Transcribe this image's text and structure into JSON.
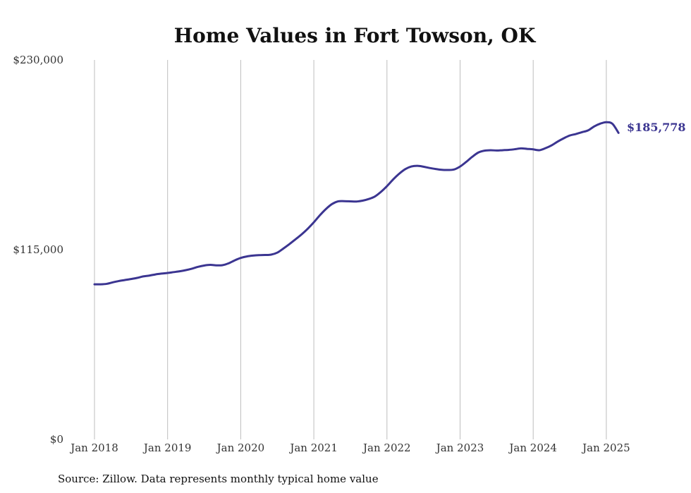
{
  "chart_data": {
    "type": "line",
    "title": "Home Values in Fort Towson, OK",
    "xlabel": "",
    "ylabel": "",
    "source": "Source: Zillow. Data represents monthly typical home value",
    "ylim": [
      0,
      230000
    ],
    "y_ticks": [
      {
        "value": 0,
        "label": "$0"
      },
      {
        "value": 115000,
        "label": "$115,000"
      },
      {
        "value": 230000,
        "label": "$230,000"
      }
    ],
    "x_ticks": [
      {
        "value": "2018-01",
        "label": "Jan 2018"
      },
      {
        "value": "2019-01",
        "label": "Jan 2019"
      },
      {
        "value": "2020-01",
        "label": "Jan 2020"
      },
      {
        "value": "2021-01",
        "label": "Jan 2021"
      },
      {
        "value": "2022-01",
        "label": "Jan 2022"
      },
      {
        "value": "2023-01",
        "label": "Jan 2023"
      },
      {
        "value": "2024-01",
        "label": "Jan 2024"
      },
      {
        "value": "2025-01",
        "label": "Jan 2025"
      }
    ],
    "grid": "vertical",
    "line_color": "#3b3591",
    "end_label": "$185,778",
    "series": [
      {
        "x": [
          "2018-01",
          "2018-02",
          "2018-03",
          "2018-04",
          "2018-05",
          "2018-06",
          "2018-07",
          "2018-08",
          "2018-09",
          "2018-10",
          "2018-11",
          "2018-12",
          "2019-01",
          "2019-02",
          "2019-03",
          "2019-04",
          "2019-05",
          "2019-06",
          "2019-07",
          "2019-08",
          "2019-09",
          "2019-10",
          "2019-11",
          "2019-12",
          "2020-01",
          "2020-02",
          "2020-03",
          "2020-04",
          "2020-05",
          "2020-06",
          "2020-07",
          "2020-08",
          "2020-09",
          "2020-10",
          "2020-11",
          "2020-12",
          "2021-01",
          "2021-02",
          "2021-03",
          "2021-04",
          "2021-05",
          "2021-06",
          "2021-07",
          "2021-08",
          "2021-09",
          "2021-10",
          "2021-11",
          "2021-12",
          "2022-01",
          "2022-02",
          "2022-03",
          "2022-04",
          "2022-05",
          "2022-06",
          "2022-07",
          "2022-08",
          "2022-09",
          "2022-10",
          "2022-11",
          "2022-12",
          "2023-01",
          "2023-02",
          "2023-03",
          "2023-04",
          "2023-05",
          "2023-06",
          "2023-07",
          "2023-08",
          "2023-09",
          "2023-10",
          "2023-11",
          "2023-12",
          "2024-01",
          "2024-02",
          "2024-03",
          "2024-04",
          "2024-05",
          "2024-06",
          "2024-07",
          "2024-08",
          "2024-09",
          "2024-10",
          "2024-11",
          "2024-12",
          "2025-01",
          "2025-02",
          "2025-03"
        ],
        "values": [
          94000,
          94000,
          94300,
          95200,
          96000,
          96600,
          97200,
          97900,
          98800,
          99300,
          100000,
          100500,
          100900,
          101400,
          101900,
          102600,
          103500,
          104600,
          105400,
          105800,
          105500,
          105600,
          106700,
          108500,
          110000,
          110900,
          111400,
          111700,
          111800,
          112000,
          113200,
          115700,
          118400,
          121300,
          124300,
          127700,
          131600,
          135900,
          139700,
          142700,
          144300,
          144400,
          144300,
          144200,
          144700,
          145700,
          147200,
          150000,
          153500,
          157500,
          161000,
          163800,
          165400,
          165800,
          165300,
          164500,
          163900,
          163400,
          163300,
          163600,
          165400,
          168200,
          171300,
          173900,
          175000,
          175300,
          175100,
          175300,
          175500,
          175900,
          176400,
          176100,
          175800,
          175300,
          176500,
          178200,
          180500,
          182500,
          184200,
          185100,
          186200,
          187300,
          189700,
          191400,
          192300,
          191300,
          185778
        ]
      }
    ]
  }
}
